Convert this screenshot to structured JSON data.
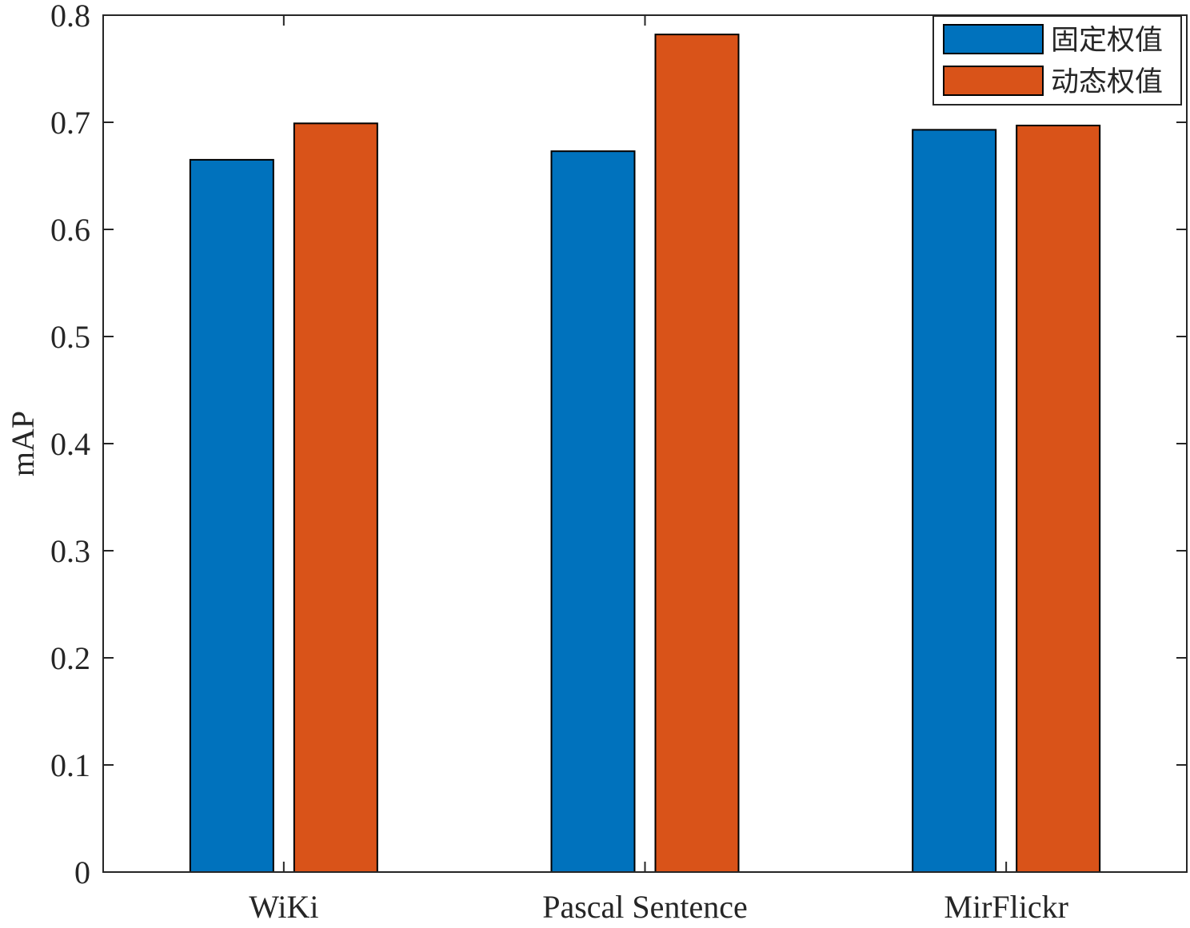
{
  "chart_data": {
    "type": "bar",
    "title": "",
    "xlabel": "",
    "ylabel": "mAP",
    "ylim": [
      0,
      0.8
    ],
    "yticks": [
      "0",
      "0.1",
      "0.2",
      "0.3",
      "0.4",
      "0.5",
      "0.6",
      "0.7",
      "0.8"
    ],
    "categories": [
      "WiKi",
      "Pascal Sentence",
      "MirFlickr"
    ],
    "series": [
      {
        "name": "固定权值",
        "color": "#0072BD",
        "values": [
          0.665,
          0.673,
          0.693
        ]
      },
      {
        "name": "动态权值",
        "color": "#D95319",
        "values": [
          0.699,
          0.782,
          0.697
        ]
      }
    ],
    "grid": false,
    "legend_position": "top-right"
  }
}
